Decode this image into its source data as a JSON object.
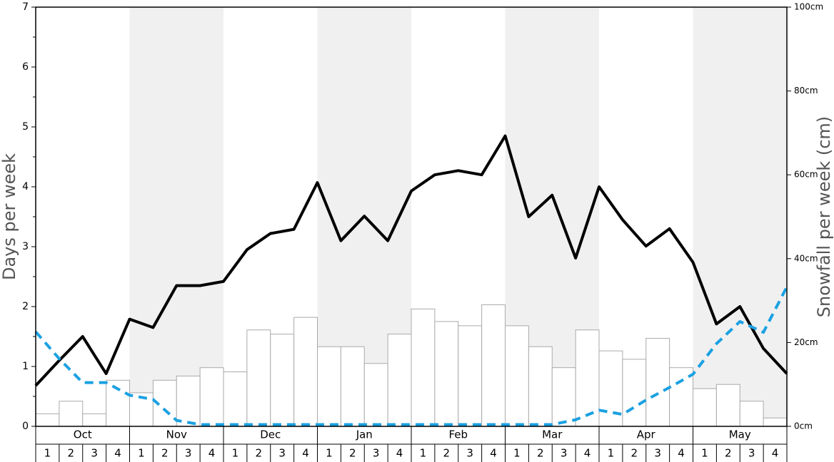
{
  "chart_data": {
    "type": "bar-line",
    "ylabel": "Days per week",
    "y2label": "Snowfall per week (cm)",
    "months": [
      "Oct",
      "Nov",
      "Dec",
      "Jan",
      "Feb",
      "Mar",
      "Apr",
      "May"
    ],
    "categories": [
      "1",
      "2",
      "3",
      "4",
      "1",
      "2",
      "3",
      "4",
      "1",
      "2",
      "3",
      "4",
      "1",
      "2",
      "3",
      "4",
      "1",
      "2",
      "3",
      "4",
      "1",
      "2",
      "3",
      "4",
      "1",
      "2",
      "3",
      "4",
      "1",
      "2",
      "3",
      "4"
    ],
    "ylim": [
      0,
      7
    ],
    "yticks": [
      0,
      1,
      2,
      3,
      4,
      5,
      6,
      7
    ],
    "yminorticks": [
      0.5,
      1.5,
      2.5,
      3.5,
      4.5,
      5.5,
      6.5
    ],
    "y2lim": [
      0,
      100
    ],
    "y2ticks": [
      {
        "value": 0,
        "label": "0cm"
      },
      {
        "value": 20,
        "label": "20cm"
      },
      {
        "value": 40,
        "label": "40cm"
      },
      {
        "value": 60,
        "label": "60cm"
      },
      {
        "value": 80,
        "label": "80cm"
      },
      {
        "value": 100,
        "label": "100cm"
      }
    ],
    "xlim": [
      0,
      32
    ],
    "bars": {
      "axis": "y2",
      "color": "#ffffff",
      "values": [
        3,
        6,
        3,
        11,
        8,
        11,
        12,
        14,
        13,
        23,
        22,
        26,
        19,
        19,
        15,
        22,
        28,
        25,
        24,
        29,
        24,
        19,
        14,
        23,
        18,
        16,
        21,
        14,
        9,
        10,
        6,
        2
      ]
    },
    "series": [
      {
        "color": "#000000",
        "dash": false,
        "x": [
          0,
          1,
          2,
          3,
          4,
          5,
          6,
          7,
          8,
          9,
          10,
          11,
          12,
          13,
          14,
          15,
          16,
          17,
          18,
          19,
          20,
          21,
          22,
          23,
          24,
          25,
          26,
          27,
          28,
          29,
          30,
          31,
          32
        ],
        "values": [
          0.68,
          1.1,
          1.5,
          0.88,
          1.79,
          1.65,
          2.35,
          2.35,
          2.42,
          2.95,
          3.22,
          3.29,
          4.07,
          3.1,
          3.51,
          3.1,
          3.93,
          4.2,
          4.27,
          4.2,
          4.85,
          3.5,
          3.86,
          2.81,
          4.0,
          3.45,
          3.01,
          3.3,
          2.74,
          1.71,
          2.0,
          1.3,
          0.88
        ]
      },
      {
        "color": "#1ba1e2",
        "dash": true,
        "x": [
          0,
          1,
          2,
          3,
          4,
          5,
          6,
          7,
          8,
          9,
          10,
          11,
          12,
          13,
          14,
          15,
          16,
          17,
          18,
          19,
          20,
          21,
          22,
          23,
          24,
          25,
          26,
          27,
          28,
          29,
          30,
          31,
          32
        ],
        "values": [
          1.58,
          1.13,
          0.73,
          0.73,
          0.52,
          0.45,
          0.1,
          0.03,
          0.03,
          0.03,
          0.03,
          0.03,
          0.03,
          0.03,
          0.03,
          0.03,
          0.03,
          0.03,
          0.03,
          0.03,
          0.03,
          0.03,
          0.03,
          0.11,
          0.27,
          0.2,
          0.44,
          0.65,
          0.87,
          1.38,
          1.75,
          1.57,
          2.33
        ]
      }
    ]
  }
}
